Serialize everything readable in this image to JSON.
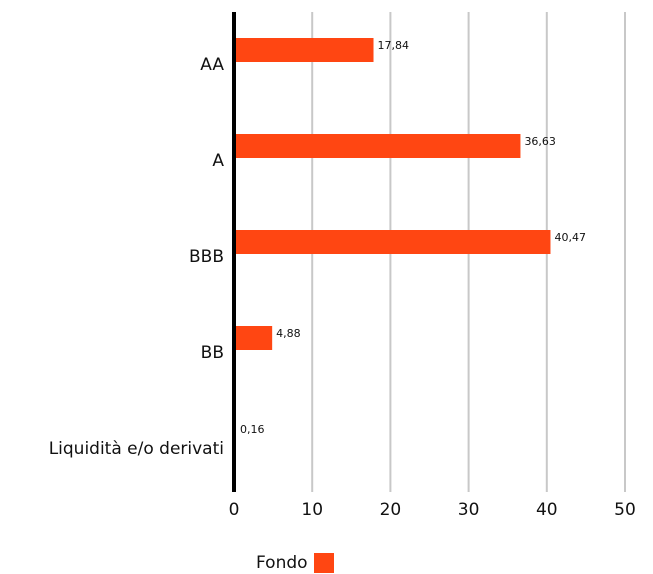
{
  "chart_data": {
    "type": "bar",
    "orientation": "horizontal",
    "categories": [
      "AA",
      "A",
      "BBB",
      "BB",
      "Liquidità e/o derivati"
    ],
    "series": [
      {
        "name": "Fondo",
        "values": [
          17.84,
          36.63,
          40.47,
          4.88,
          0.16
        ],
        "color": "#ff4612"
      }
    ],
    "value_labels": [
      "17,84",
      "36,63",
      "40,47",
      "4,88",
      "0,16"
    ],
    "xlim": [
      0,
      50
    ],
    "xticks": [
      0,
      10,
      20,
      30,
      40,
      50
    ],
    "grid": true,
    "legend_position": "bottom"
  },
  "colors": {
    "bar": "#ff4612",
    "grid": "#c8c8c8",
    "axis": "#000000"
  },
  "legend": {
    "label": "Fondo"
  }
}
